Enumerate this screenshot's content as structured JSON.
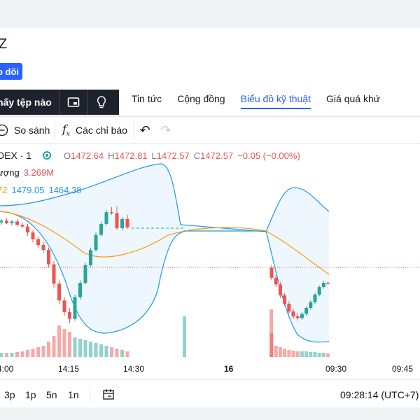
{
  "header": {
    "symbol_fragment": "Z",
    "follow_label": "o dõi"
  },
  "file_bar": {
    "label": "hấy tệp nào"
  },
  "nav": {
    "tabs": [
      "Tin tức",
      "Cộng đồng",
      "Biểu đồ kỹ thuật",
      "Giá quá khứ"
    ],
    "active": 2
  },
  "toolbar": {
    "compare_label": "So sánh",
    "indicators_label": "Các chỉ báo",
    "undo": "↶",
    "redo": "↷"
  },
  "legend": {
    "symbol": "DEX · 1",
    "o_label": "O",
    "o_value": "1472.64",
    "h_label": "H",
    "h_value": "1472.81",
    "l_label": "L",
    "l_value": "1472.57",
    "c_label": "C",
    "c_value": "1472.57",
    "change": "−0.05 (−0.00%)",
    "volume_label": "ượng",
    "volume_value": "3.269M",
    "bb_basis": "72",
    "bb_upper": "1479.05",
    "bb_lower": "1464.38"
  },
  "time_axis": {
    "labels": [
      "4:00",
      "14:15",
      "14:30",
      "16",
      "09:30",
      "09:45"
    ]
  },
  "bottom": {
    "ranges": [
      "3p",
      "1p",
      "5n",
      "1n"
    ],
    "clock": "09:28:14 (UTC+7)"
  },
  "colors": {
    "up": "#26a69a",
    "down": "#ef5350",
    "accent": "#2962ff",
    "band": "#2196f3",
    "basis": "#ff9800"
  },
  "chart_data": {
    "type": "candlestick",
    "candles": [
      {
        "o": 1472.2,
        "h": 1472.6,
        "l": 1471.9,
        "c": 1472.4
      },
      {
        "o": 1472.4,
        "h": 1472.7,
        "l": 1472.0,
        "c": 1472.1
      },
      {
        "o": 1472.1,
        "h": 1472.5,
        "l": 1471.8,
        "c": 1472.3
      },
      {
        "o": 1472.3,
        "h": 1472.6,
        "l": 1471.7,
        "c": 1471.9
      },
      {
        "o": 1471.9,
        "h": 1472.2,
        "l": 1471.5,
        "c": 1471.7
      },
      {
        "o": 1471.7,
        "h": 1472.0,
        "l": 1470.6,
        "c": 1471.0
      },
      {
        "o": 1471.0,
        "h": 1471.3,
        "l": 1469.8,
        "c": 1470.2
      },
      {
        "o": 1470.2,
        "h": 1470.5,
        "l": 1469.2,
        "c": 1469.5
      },
      {
        "o": 1469.5,
        "h": 1469.9,
        "l": 1468.6,
        "c": 1468.9
      },
      {
        "o": 1468.9,
        "h": 1469.2,
        "l": 1466.8,
        "c": 1467.2
      },
      {
        "o": 1467.2,
        "h": 1467.6,
        "l": 1464.4,
        "c": 1464.9
      },
      {
        "o": 1464.9,
        "h": 1465.3,
        "l": 1462.5,
        "c": 1462.9
      },
      {
        "o": 1462.9,
        "h": 1463.3,
        "l": 1461.1,
        "c": 1461.5
      },
      {
        "o": 1461.5,
        "h": 1462.0,
        "l": 1460.2,
        "c": 1460.7
      },
      {
        "o": 1460.7,
        "h": 1463.6,
        "l": 1460.5,
        "c": 1463.3
      },
      {
        "o": 1463.3,
        "h": 1465.3,
        "l": 1463.0,
        "c": 1465.0
      },
      {
        "o": 1465.0,
        "h": 1467.4,
        "l": 1464.8,
        "c": 1467.1
      },
      {
        "o": 1467.1,
        "h": 1469.2,
        "l": 1466.9,
        "c": 1468.9
      },
      {
        "o": 1468.9,
        "h": 1471.0,
        "l": 1468.7,
        "c": 1470.7
      },
      {
        "o": 1470.7,
        "h": 1472.3,
        "l": 1470.5,
        "c": 1472.0
      },
      {
        "o": 1472.0,
        "h": 1473.7,
        "l": 1471.8,
        "c": 1473.4
      },
      {
        "o": 1473.4,
        "h": 1474.0,
        "l": 1473.1,
        "c": 1473.3
      },
      {
        "o": 1473.3,
        "h": 1474.1,
        "l": 1471.3,
        "c": 1471.5
      },
      {
        "o": 1471.5,
        "h": 1472.8,
        "l": 1471.2,
        "c": 1472.6
      },
      {
        "o": 1472.6,
        "h": 1473.1,
        "l": 1471.4,
        "c": 1471.6
      },
      {
        "o": 1466.8,
        "h": 1467.1,
        "l": 1465.3,
        "c": 1465.6
      },
      {
        "o": 1465.6,
        "h": 1465.9,
        "l": 1464.5,
        "c": 1464.8
      },
      {
        "o": 1464.8,
        "h": 1465.1,
        "l": 1463.2,
        "c": 1463.5
      },
      {
        "o": 1463.5,
        "h": 1463.8,
        "l": 1462.2,
        "c": 1462.5
      },
      {
        "o": 1462.5,
        "h": 1462.8,
        "l": 1461.3,
        "c": 1461.6
      },
      {
        "o": 1461.6,
        "h": 1461.9,
        "l": 1460.7,
        "c": 1461.0
      },
      {
        "o": 1461.0,
        "h": 1461.4,
        "l": 1460.5,
        "c": 1460.8
      },
      {
        "o": 1460.8,
        "h": 1461.5,
        "l": 1460.6,
        "c": 1461.3
      },
      {
        "o": 1461.3,
        "h": 1462.2,
        "l": 1461.1,
        "c": 1462.0
      },
      {
        "o": 1462.0,
        "h": 1462.9,
        "l": 1461.8,
        "c": 1462.7
      },
      {
        "o": 1462.7,
        "h": 1463.8,
        "l": 1462.5,
        "c": 1463.6
      },
      {
        "o": 1463.6,
        "h": 1464.7,
        "l": 1463.4,
        "c": 1464.5
      },
      {
        "o": 1464.5,
        "h": 1465.2,
        "l": 1464.3,
        "c": 1465.0
      },
      {
        "o": 1465.0,
        "h": 1465.2,
        "l": 1464.8,
        "c": 1464.9
      }
    ]
  }
}
